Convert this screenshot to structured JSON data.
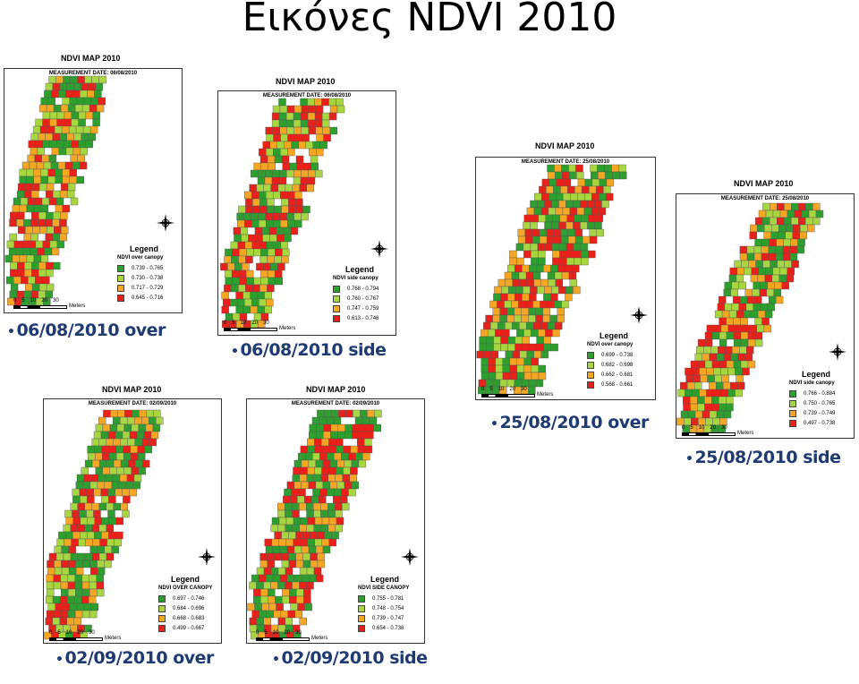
{
  "slide_title": "Εικόνες NDVI 2010",
  "colors": {
    "high": "#2e9e2e",
    "midhigh": "#a8d640",
    "midlow": "#f5a623",
    "low": "#e8211b"
  },
  "compass_icon": "north-arrow-icon",
  "panels": [
    {
      "map_title": "NDVI MAP 2010",
      "meas_label": "MEASUREMENT DATE:",
      "meas_date": "06/08/2010",
      "legend_title": "Legend",
      "legend_sub": "NDVI over canopy",
      "classes": [
        "0.739 - 0.765",
        "0.730 - 0.738",
        "0.717 - 0.729",
        "0.645 - 0.716"
      ],
      "scale_nums": [
        "0",
        "5",
        "10",
        "20",
        "30"
      ],
      "scale_unit": "Meters",
      "caption": "06/08/2010 over"
    },
    {
      "map_title": "NDVI MAP 2010",
      "meas_label": "MEASUREMENT DATE:",
      "meas_date": "06/08/2010",
      "legend_title": "Legend",
      "legend_sub": "NDVI side canopy",
      "classes": [
        "0.768 - 0.794",
        "0.760 - 0.767",
        "0.747 - 0.759",
        "0.613 - 0.746"
      ],
      "scale_nums": [
        "0",
        "5",
        "10",
        "20",
        "30"
      ],
      "scale_unit": "Meters",
      "caption": "06/08/2010 side"
    },
    {
      "map_title": "NDVI MAP 2010",
      "meas_label": "MEASUREMENT DATE:",
      "meas_date": "25/08/2010",
      "legend_title": "Legend",
      "legend_sub": "NDVI over canopy",
      "classes": [
        "0.699 - 0.738",
        "0.682 - 0.698",
        "0.662 - 0.681",
        "0.568 - 0.661"
      ],
      "scale_nums": [
        "0",
        "5",
        "10",
        "20",
        "30"
      ],
      "scale_unit": "Meters",
      "caption": "25/08/2010 over"
    },
    {
      "map_title": "NDVI MAP 2010",
      "meas_label": "MEASUREMENT DATE:",
      "meas_date": "25/08/2010",
      "legend_title": "Legend",
      "legend_sub": "NDVI side canopy",
      "classes": [
        "0.766 - 0.884",
        "0.750 - 0.765",
        "0.739 - 0.749",
        "0.497 - 0.738"
      ],
      "scale_nums": [
        "0",
        "5",
        "10",
        "20",
        "30"
      ],
      "scale_unit": "Meters",
      "caption": "25/08/2010 side"
    },
    {
      "map_title": "NDVI MAP 2010",
      "meas_label": "MEASUREMENT DATE:",
      "meas_date": "02/09/2010",
      "legend_title": "Legend",
      "legend_sub": "NDVI OVER CANOPY",
      "classes": [
        "0.697 - 0.746",
        "0.684 - 0.696",
        "0.668 - 0.683",
        "0.499 - 0.667"
      ],
      "scale_nums": [
        "0",
        "5",
        "10",
        "20",
        "30"
      ],
      "scale_unit": "Meters",
      "caption": "02/09/2010 over"
    },
    {
      "map_title": "NDVI MAP 2010",
      "meas_label": "MEASUREMENT DATE:",
      "meas_date": "02/09/2010",
      "legend_title": "Legend",
      "legend_sub": "NDVI SIDE CANOPY",
      "classes": [
        "0.755 - 0.781",
        "0.748 - 0.754",
        "0.739 - 0.747",
        "0.654 - 0.738"
      ],
      "scale_nums": [
        "0",
        "5",
        "10",
        "20",
        "30"
      ],
      "scale_unit": "Meters",
      "caption": "02/09/2010 side"
    }
  ]
}
